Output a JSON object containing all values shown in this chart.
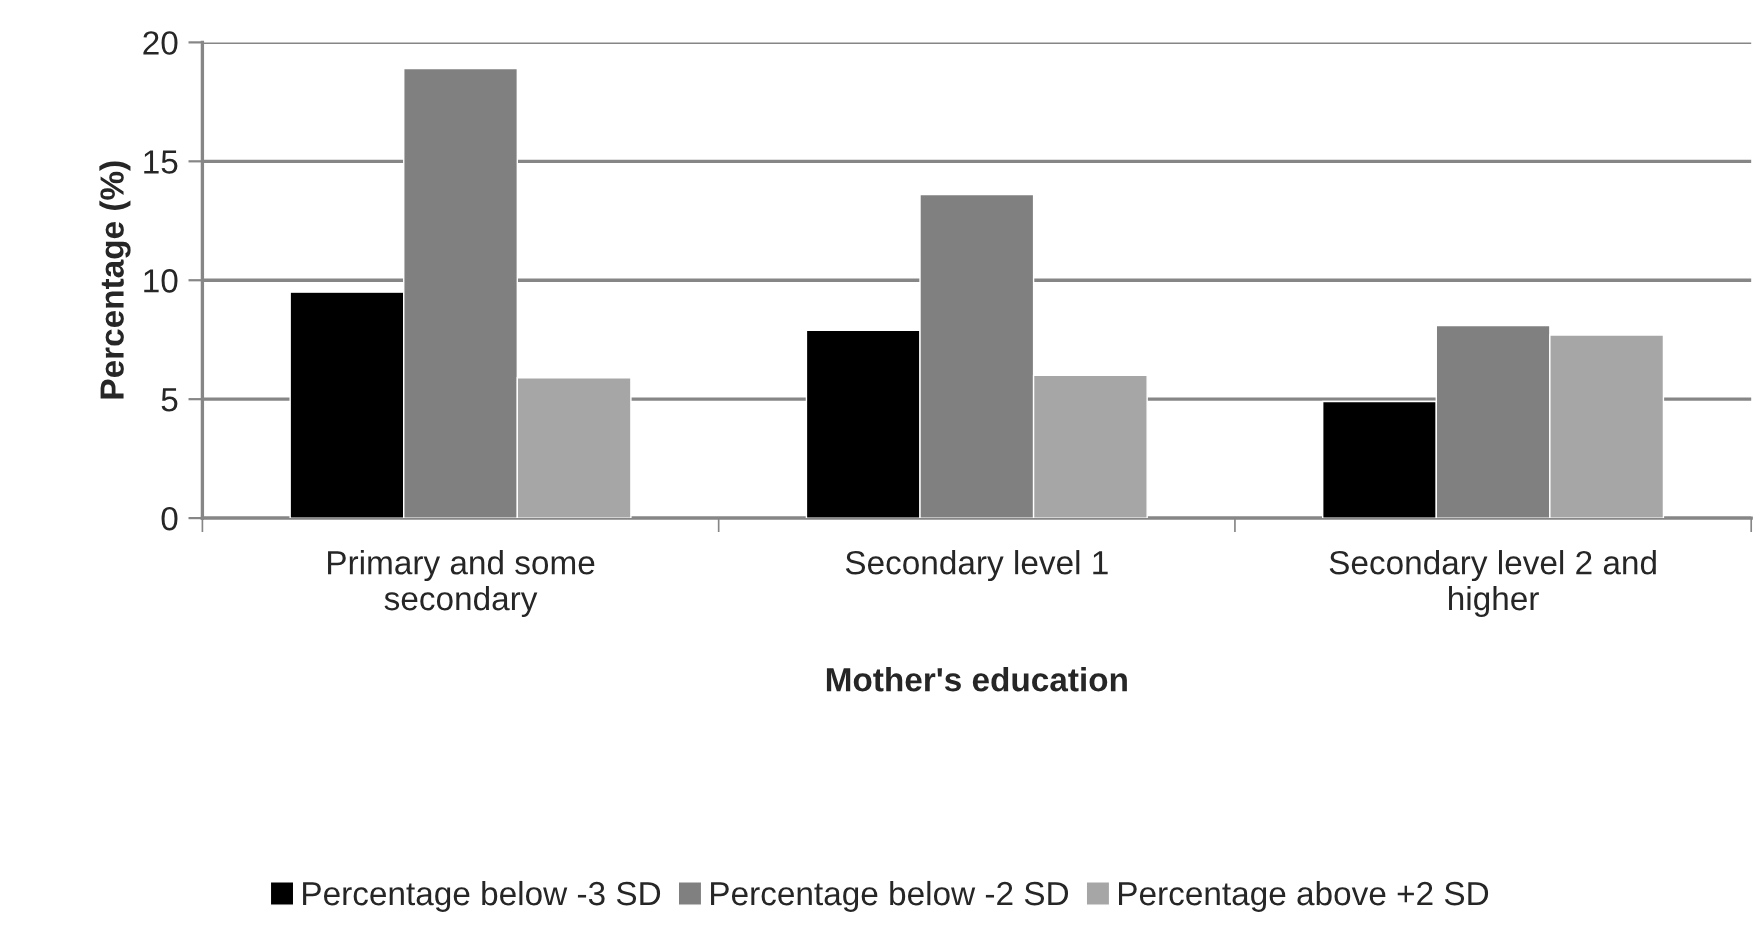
{
  "chart_data": {
    "type": "bar",
    "xlabel": "Mother's education",
    "ylabel": "Percentage (%)",
    "categories": [
      "Primary and some\nsecondary",
      "Secondary level 1",
      "Secondary level 2 and\nhigher"
    ],
    "series": [
      {
        "name": "Percentage below -3 SD",
        "color": "#000000",
        "values": [
          9.5,
          7.9,
          4.9
        ]
      },
      {
        "name": "Percentage below -2 SD",
        "color": "#808080",
        "values": [
          18.9,
          13.6,
          8.1
        ]
      },
      {
        "name": "Percentage above +2 SD",
        "color": "#a6a6a6",
        "values": [
          5.9,
          6.0,
          7.7
        ]
      }
    ],
    "ylim": [
      0,
      20
    ],
    "yticks": [
      0,
      5,
      10,
      15,
      20
    ],
    "grid": "y",
    "legend": "bottom"
  }
}
